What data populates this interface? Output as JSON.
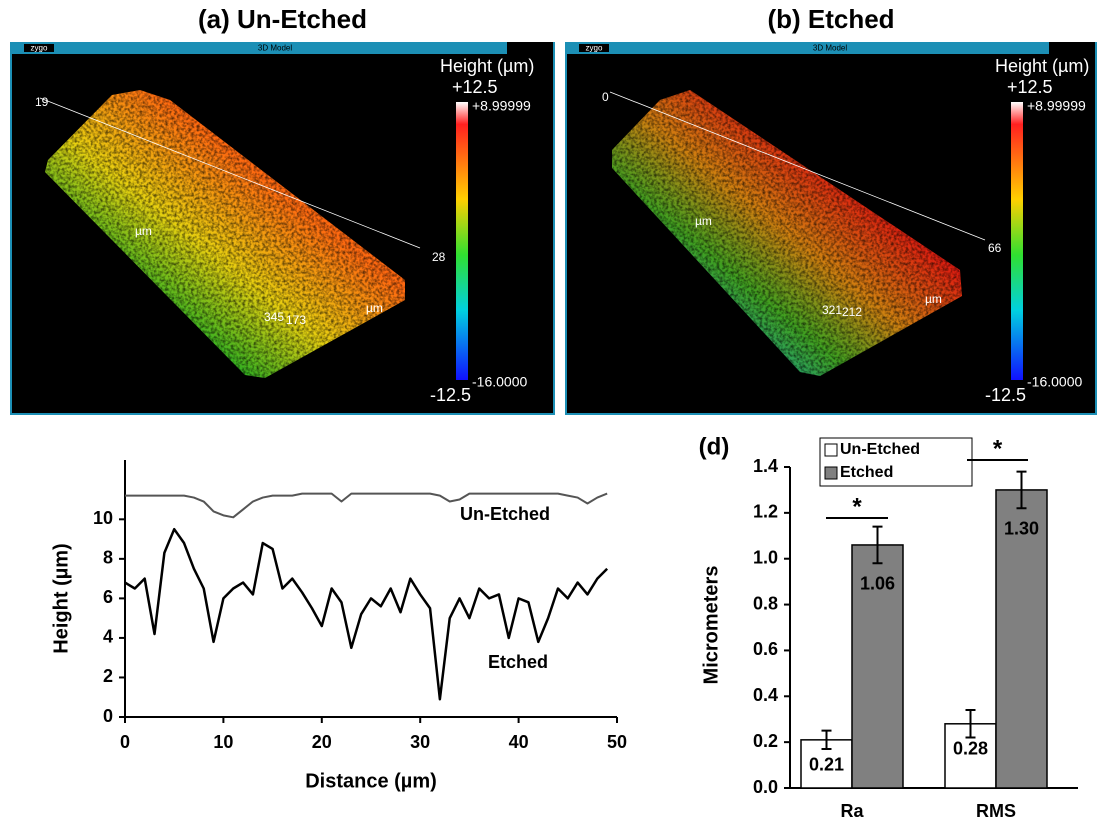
{
  "chart_data": [
    {
      "type": "surface",
      "title": "(a) Un-Etched",
      "logo": "zygo",
      "window_title": "3D Model",
      "colorbar_labels": [
        "Height (µm)",
        "+12.5",
        "+8.99999",
        "-16.0000",
        "-12.5"
      ],
      "axis_labels": [
        "19",
        "µm",
        "28",
        "345",
        "173",
        "µm"
      ]
    },
    {
      "type": "surface",
      "title": "(b) Etched",
      "logo": "zygo",
      "window_title": "3D Model",
      "colorbar_labels": [
        "Height (µm)",
        "+12.5",
        "+8.99999",
        "-16.0000",
        "-12.5"
      ],
      "axis_labels": [
        "0",
        "µm",
        "66",
        "321",
        "212",
        "µm"
      ]
    },
    {
      "type": "line",
      "xlabel": "Distance (µm)",
      "ylabel": "Height (µm)",
      "x": [
        0,
        1,
        2,
        3,
        4,
        5,
        6,
        7,
        8,
        9,
        10,
        11,
        12,
        13,
        14,
        15,
        16,
        17,
        18,
        19,
        20,
        21,
        22,
        23,
        24,
        25,
        26,
        27,
        28,
        29,
        30,
        31,
        32,
        33,
        34,
        35,
        36,
        37,
        38,
        39,
        40,
        41,
        42,
        43,
        44,
        45,
        46,
        47,
        48,
        49
      ],
      "series": [
        {
          "name": "Un-Etched",
          "color": "#555555",
          "values": [
            11.2,
            11.2,
            11.2,
            11.2,
            11.2,
            11.2,
            11.2,
            11.1,
            10.9,
            10.4,
            10.2,
            10.1,
            10.5,
            10.9,
            11.1,
            11.2,
            11.2,
            11.2,
            11.3,
            11.3,
            11.3,
            11.3,
            10.9,
            11.3,
            11.3,
            11.3,
            11.3,
            11.3,
            11.3,
            11.3,
            11.3,
            11.3,
            11.2,
            10.9,
            11.0,
            11.3,
            11.3,
            11.3,
            11.3,
            11.3,
            11.3,
            11.3,
            11.3,
            11.3,
            11.3,
            11.2,
            11.1,
            10.8,
            11.1,
            11.3
          ]
        },
        {
          "name": "Etched",
          "color": "#000000",
          "values": [
            6.8,
            6.5,
            7.0,
            4.2,
            8.3,
            9.5,
            8.8,
            7.5,
            6.5,
            3.8,
            6.0,
            6.5,
            6.8,
            6.2,
            8.8,
            8.5,
            6.5,
            7.0,
            6.3,
            5.5,
            4.6,
            6.5,
            5.8,
            3.5,
            5.2,
            6.0,
            5.6,
            6.5,
            5.3,
            7.0,
            6.2,
            5.5,
            0.9,
            5.0,
            6.0,
            5.0,
            6.5,
            6.0,
            6.2,
            4.0,
            6.0,
            5.8,
            3.8,
            5.0,
            6.5,
            6.0,
            6.8,
            6.2,
            7.0,
            7.5
          ]
        }
      ],
      "xlim": [
        0,
        50
      ],
      "xticks": [
        0,
        10,
        20,
        30,
        40,
        50
      ],
      "ylim": [
        0,
        13
      ],
      "yticks": [
        0,
        2,
        4,
        6,
        8,
        10
      ]
    },
    {
      "type": "bar",
      "panel_label": "(d)",
      "ylabel": "Micrometers",
      "categories": [
        "Ra",
        "RMS"
      ],
      "series": [
        {
          "name": "Un-Etched",
          "color": "#ffffff",
          "values": [
            0.21,
            0.28
          ],
          "value_labels": [
            "0.21",
            "0.28"
          ],
          "errors": [
            0.04,
            0.06
          ]
        },
        {
          "name": "Etched",
          "color": "#808080",
          "values": [
            1.06,
            1.3
          ],
          "value_labels": [
            "1.06",
            "1.30"
          ],
          "errors": [
            0.08,
            0.08
          ]
        }
      ],
      "ylim": [
        0,
        1.4
      ],
      "yticks": [
        {
          "value": 0,
          "label": "0.0"
        },
        0.2,
        0.4,
        0.6,
        0.8,
        {
          "value": 1,
          "label": "1.0"
        },
        1.2,
        1.4
      ],
      "annotations": [
        "*",
        "*"
      ]
    }
  ]
}
